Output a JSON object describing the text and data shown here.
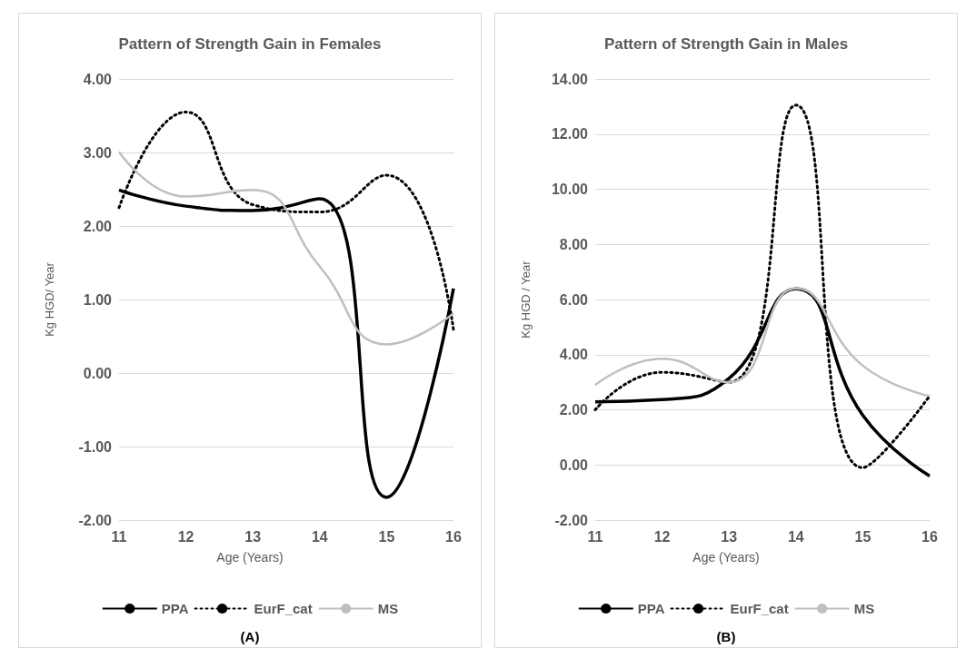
{
  "chart_data": [
    {
      "type": "line",
      "title": "Pattern of Strength Gain in Females",
      "xlabel": "Age (Years)",
      "ylabel": "Kg HGD/ Year",
      "categories": [
        "11",
        "12",
        "13",
        "14",
        "15",
        "16"
      ],
      "series": [
        {
          "name": "PPA",
          "color": "#000000",
          "line_style": "solid",
          "values": [
            2.49,
            2.27,
            2.21,
            2.37,
            -1.69,
            1.15
          ]
        },
        {
          "name": "EurF_cat",
          "color": "#000000",
          "line_style": "dotted",
          "values": [
            2.25,
            3.55,
            2.29,
            2.19,
            2.69,
            0.59
          ]
        },
        {
          "name": "MS",
          "color": "#bfbfbf",
          "line_style": "solid",
          "values": [
            3.01,
            2.4,
            2.49,
            1.45,
            0.39,
            0.81
          ]
        }
      ],
      "ylim": [
        -2,
        4
      ],
      "yticks": [
        {
          "value": -2,
          "label": "-2.00"
        },
        {
          "value": -1,
          "label": "-1.00"
        },
        {
          "value": 0,
          "label": "0.00"
        },
        {
          "value": 1,
          "label": "1.00"
        },
        {
          "value": 2,
          "label": "2.00"
        },
        {
          "value": 3,
          "label": "3.00"
        },
        {
          "value": 4,
          "label": "4.00"
        }
      ],
      "grid": "y",
      "legend": "bottom",
      "marker": "none",
      "annotations": [
        "(A)"
      ]
    },
    {
      "type": "line",
      "title": "Pattern of Strength Gain in Males",
      "xlabel": "Age (Years)",
      "ylabel": "Kg HGD / Year",
      "categories": [
        "11",
        "12",
        "13",
        "14",
        "15",
        "16"
      ],
      "series": [
        {
          "name": "PPA",
          "color": "#000000",
          "line_style": "solid",
          "values": [
            2.29,
            2.37,
            3.14,
            6.39,
            1.8,
            -0.4
          ]
        },
        {
          "name": "EurF_cat",
          "color": "#000000",
          "line_style": "dotted",
          "values": [
            2.0,
            3.36,
            3.0,
            13.05,
            -0.1,
            2.5
          ]
        },
        {
          "name": "MS",
          "color": "#bfbfbf",
          "line_style": "solid",
          "values": [
            2.9,
            3.85,
            3.0,
            6.4,
            3.6,
            2.5
          ]
        }
      ],
      "ylim": [
        -2,
        14
      ],
      "yticks": [
        {
          "value": -2,
          "label": "-2.00"
        },
        {
          "value": 0,
          "label": "0.00"
        },
        {
          "value": 2,
          "label": "2.00"
        },
        {
          "value": 4,
          "label": "4.00"
        },
        {
          "value": 6,
          "label": "6.00"
        },
        {
          "value": 8,
          "label": "8.00"
        },
        {
          "value": 10,
          "label": "10.00"
        },
        {
          "value": 12,
          "label": "12.00"
        },
        {
          "value": 14,
          "label": "14.00"
        }
      ],
      "grid": "y",
      "legend": "bottom",
      "marker": "none",
      "annotations": [
        "(B)"
      ]
    }
  ]
}
